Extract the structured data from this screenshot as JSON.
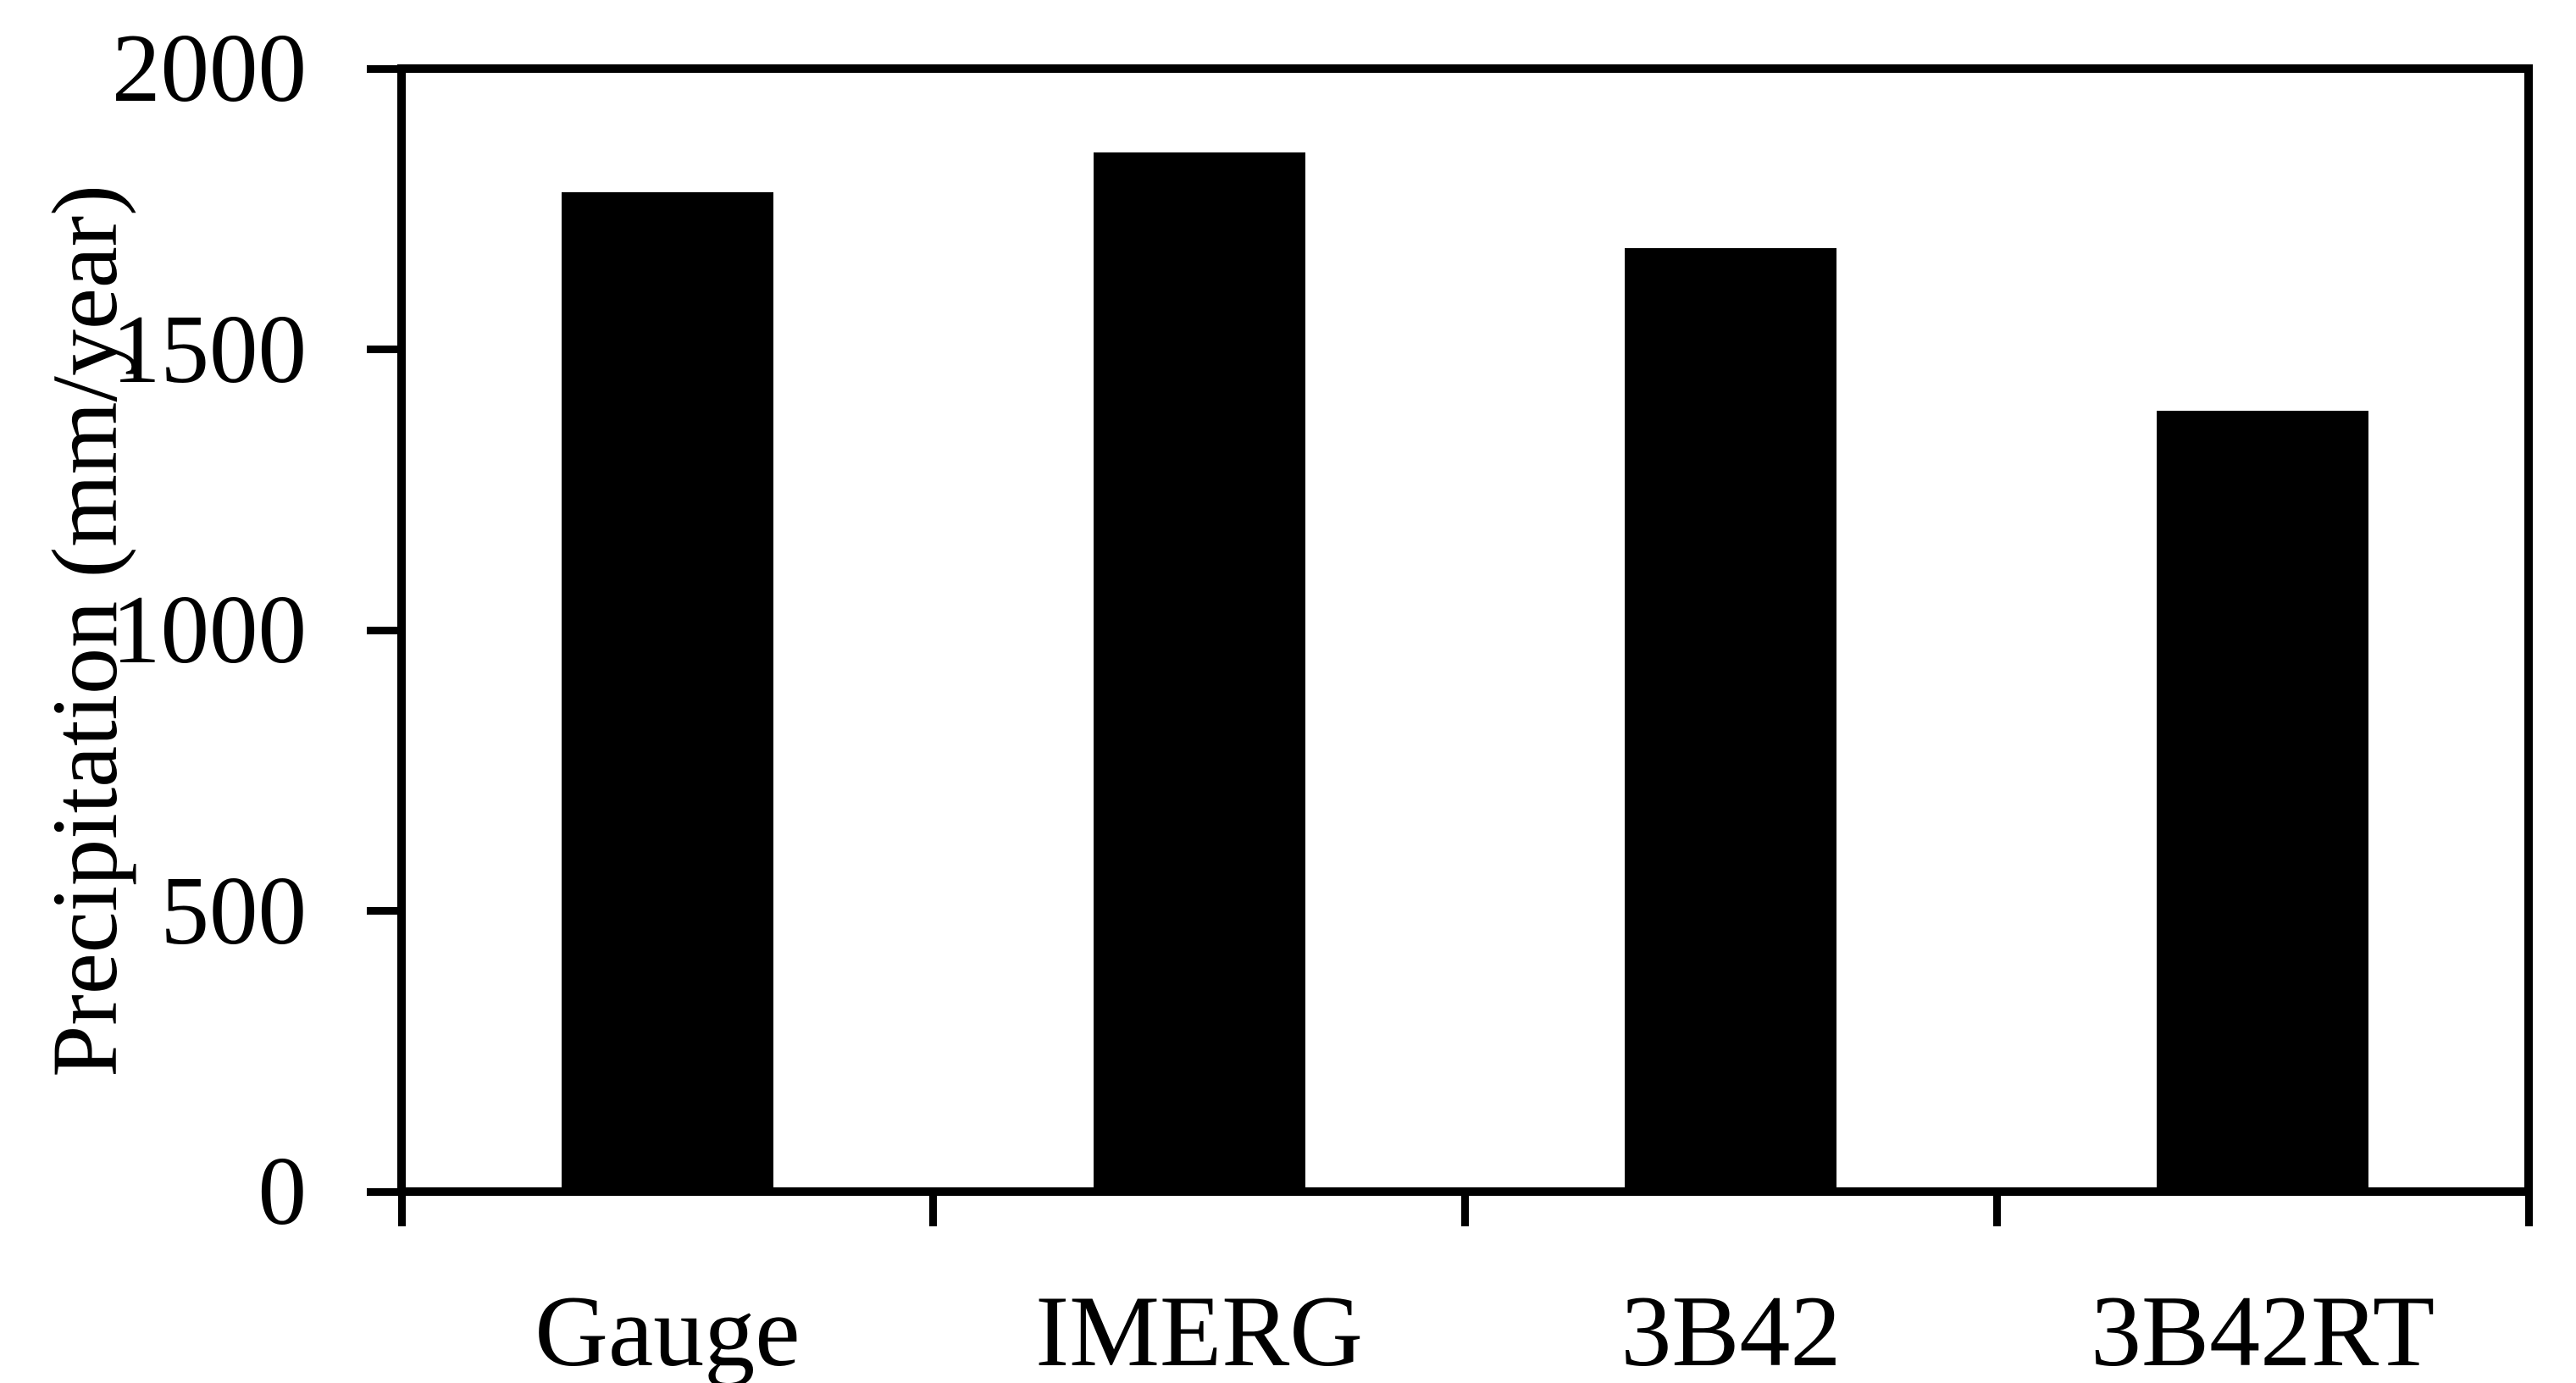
{
  "figure": {
    "background_color": "#ffffff",
    "bar_color": "#000000",
    "axis_color": "#000000"
  },
  "chart_data": {
    "type": "bar",
    "title": "",
    "categories": [
      "Gauge",
      "IMERG",
      "3B42",
      "3B42RT"
    ],
    "values": [
      1780,
      1850,
      1680,
      1390
    ],
    "xlabel": "",
    "ylabel": "Precipitation (mm/year)",
    "ylim": [
      0,
      2000
    ],
    "yticks": [
      0,
      500,
      1000,
      1500,
      2000
    ],
    "ytick_labels": [
      "0",
      "500",
      "1000",
      "1500",
      "2000"
    ],
    "grid": false,
    "legend": false,
    "plot_border": "full-box",
    "tick_direction": "out"
  }
}
